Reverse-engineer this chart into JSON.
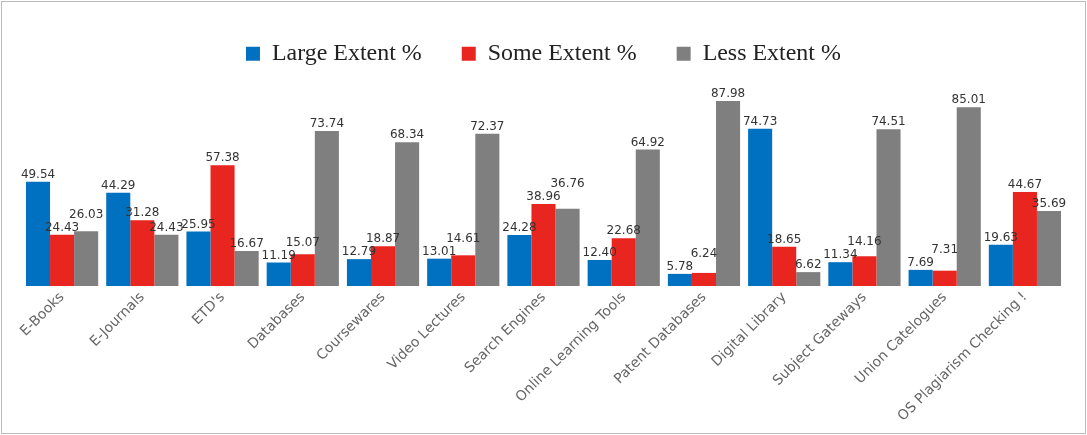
{
  "chart_data": {
    "type": "bar",
    "categories": [
      "E-Books",
      "E-Journals",
      "ETD's",
      "Databases",
      "Coursewares",
      "Video Lectures",
      "Search Engines",
      "Online Learning Tools",
      "Patent Databases",
      "Digital Library",
      "Subject Gateways",
      "Union Catelogues",
      "OS Plagiarism Checking !"
    ],
    "series": [
      {
        "name": "Large Extent %",
        "color": "#0070c0",
        "values": [
          49.54,
          44.29,
          25.95,
          11.19,
          12.79,
          13.01,
          24.28,
          12.4,
          5.78,
          74.73,
          11.34,
          7.69,
          19.63
        ],
        "value_labels": [
          "49.54",
          "44.29",
          "25.95",
          "11.19",
          "12.79",
          "13.01",
          "24.28",
          "12.40",
          "5.78",
          "74.73",
          "11.34",
          "7.69",
          "19.63"
        ]
      },
      {
        "name": "Some Extent %",
        "color": "#e8251f",
        "values": [
          24.43,
          31.28,
          57.38,
          15.07,
          18.87,
          14.61,
          38.96,
          22.68,
          6.24,
          18.65,
          14.16,
          7.31,
          44.67
        ],
        "value_labels": [
          "24.43",
          "31.28",
          "57.38",
          "15.07",
          "18.87",
          "14.61",
          "38.96",
          "22.68",
          "6.24",
          "18.65",
          "14.16",
          "7.31",
          "44.67"
        ]
      },
      {
        "name": "Less Extent %",
        "color": "#7f7f7f",
        "values": [
          26.03,
          24.43,
          16.67,
          73.74,
          68.34,
          72.37,
          36.76,
          64.92,
          87.98,
          6.62,
          74.51,
          85.01,
          35.69
        ],
        "value_labels": [
          "26.03",
          "24.43",
          "16.67",
          "73.74",
          "68.34",
          "72.37",
          "36.76",
          "64.92",
          "87.98",
          "6.62",
          "74.51",
          "85.01",
          "35.69"
        ]
      }
    ],
    "data_labels": true,
    "legend": "top",
    "grid": false,
    "tick_labels": "x"
  }
}
